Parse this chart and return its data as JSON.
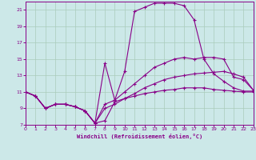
{
  "xlabel": "Windchill (Refroidissement éolien,°C)",
  "background_color": "#cce8e8",
  "grid_color": "#aaccbb",
  "line_color": "#880088",
  "xlim": [
    0,
    23
  ],
  "ylim": [
    7,
    22
  ],
  "xtick_labels": [
    "0",
    "1",
    "2",
    "3",
    "4",
    "5",
    "6",
    "7",
    "8",
    "9",
    "10",
    "11",
    "12",
    "13",
    "14",
    "15",
    "16",
    "17",
    "18",
    "19",
    "20",
    "21",
    "22",
    "23"
  ],
  "xticks": [
    0,
    1,
    2,
    3,
    4,
    5,
    6,
    7,
    8,
    9,
    10,
    11,
    12,
    13,
    14,
    15,
    16,
    17,
    18,
    19,
    20,
    21,
    22,
    23
  ],
  "yticks": [
    7,
    9,
    11,
    13,
    15,
    17,
    19,
    21
  ],
  "series": [
    {
      "x": [
        0,
        1,
        2,
        3,
        4,
        5,
        6,
        7,
        8,
        9,
        10,
        11,
        12,
        13,
        14,
        15,
        16,
        17,
        18,
        19,
        20,
        21,
        22,
        23
      ],
      "y": [
        11,
        10.5,
        9,
        9.5,
        9.5,
        9.2,
        8.7,
        7.2,
        7.5,
        9.8,
        10.2,
        10.5,
        10.8,
        11.0,
        11.2,
        11.3,
        11.5,
        11.5,
        11.5,
        11.3,
        11.2,
        11.1,
        11.0,
        11.0
      ]
    },
    {
      "x": [
        0,
        1,
        2,
        3,
        4,
        5,
        6,
        7,
        8,
        9,
        10,
        11,
        12,
        13,
        14,
        15,
        16,
        17,
        18,
        19,
        20,
        21,
        22,
        23
      ],
      "y": [
        11,
        10.5,
        9,
        9.5,
        9.5,
        9.2,
        8.7,
        7.2,
        9.0,
        9.5,
        10.2,
        10.8,
        11.5,
        12.0,
        12.5,
        12.8,
        13.0,
        13.2,
        13.3,
        13.4,
        13.5,
        13.2,
        12.8,
        11.2
      ]
    },
    {
      "x": [
        0,
        1,
        2,
        3,
        4,
        5,
        6,
        7,
        8,
        9,
        10,
        11,
        12,
        13,
        14,
        15,
        16,
        17,
        18,
        19,
        20,
        21,
        22,
        23
      ],
      "y": [
        11,
        10.5,
        9,
        9.5,
        9.5,
        9.2,
        8.7,
        7.2,
        9.5,
        10.0,
        11.0,
        12.0,
        13.0,
        14.0,
        14.5,
        15.0,
        15.2,
        15.0,
        15.2,
        15.2,
        15.0,
        12.8,
        12.5,
        11.2
      ]
    },
    {
      "x": [
        0,
        1,
        2,
        3,
        4,
        5,
        6,
        7,
        8,
        9,
        10,
        11,
        12,
        13,
        14,
        15,
        16,
        17,
        18,
        19,
        20,
        21,
        22,
        23
      ],
      "y": [
        11,
        10.5,
        9,
        9.5,
        9.5,
        9.2,
        8.7,
        7.2,
        14.5,
        10.0,
        13.5,
        20.8,
        21.3,
        21.8,
        21.8,
        21.8,
        21.5,
        19.8,
        15.0,
        13.2,
        12.3,
        11.5,
        11.1,
        11.1
      ]
    }
  ]
}
